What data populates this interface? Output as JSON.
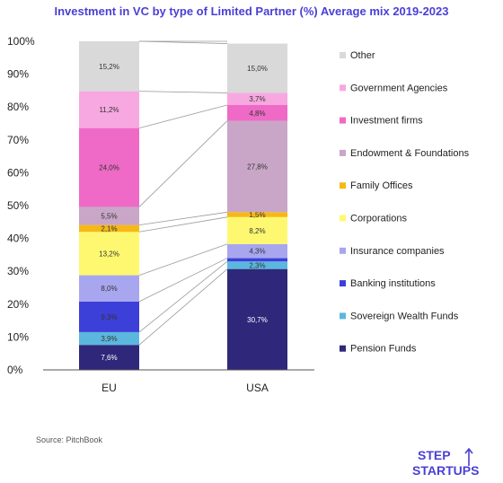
{
  "chart_data": {
    "type": "bar",
    "stacked": true,
    "title": "Investment in VC by type of Limited Partner (%) Average mix 2019-2023",
    "categories": [
      "EU",
      "USA"
    ],
    "ylim": [
      0,
      100
    ],
    "y_ticks": [
      "0%",
      "10%",
      "20%",
      "30%",
      "40%",
      "50%",
      "60%",
      "70%",
      "80%",
      "90%",
      "100%"
    ],
    "grid": false,
    "legend_position": "right",
    "series": [
      {
        "name": "Pension Funds",
        "color": "#2f287a",
        "values": [
          7.6,
          30.7
        ],
        "labels": [
          "7,6%",
          "30,7%"
        ]
      },
      {
        "name": "Sovereign Wealth Funds",
        "color": "#5bb7dd",
        "values": [
          3.9,
          2.3
        ],
        "labels": [
          "3,9%",
          "2,3%"
        ]
      },
      {
        "name": "Banking institutions",
        "color": "#3d3fd9",
        "values": [
          9.3,
          1.0
        ],
        "labels": [
          "9,3%",
          ""
        ]
      },
      {
        "name": "Insurance companies",
        "color": "#a8a6ef",
        "values": [
          8.0,
          4.3
        ],
        "labels": [
          "8,0%",
          "4,3%"
        ]
      },
      {
        "name": "Corporations",
        "color": "#fdf870",
        "values": [
          13.2,
          8.2
        ],
        "labels": [
          "13,2%",
          "8,2%"
        ]
      },
      {
        "name": "Family Offices",
        "color": "#f6b814",
        "values": [
          2.1,
          1.5
        ],
        "labels": [
          "2,1%",
          "1,5%"
        ]
      },
      {
        "name": "Endowment & Foundations",
        "color": "#c9a6c7",
        "values": [
          5.5,
          27.8
        ],
        "labels": [
          "5,5%",
          "27,8%"
        ]
      },
      {
        "name": "Investment firms",
        "color": "#ef6ac6",
        "values": [
          24.0,
          4.8
        ],
        "labels": [
          "24,0%",
          "4,8%"
        ]
      },
      {
        "name": "Government Agencies",
        "color": "#f7a8e0",
        "values": [
          11.2,
          3.7
        ],
        "labels": [
          "11,2%",
          "3,7%"
        ]
      },
      {
        "name": "Other",
        "color": "#d9d9d9",
        "values": [
          15.2,
          15.0
        ],
        "labels": [
          "15,2%",
          "15,0%"
        ]
      }
    ]
  },
  "source": "Source: PitchBook",
  "logo": {
    "line1": "STEP",
    "line2": "STARTUPS"
  }
}
